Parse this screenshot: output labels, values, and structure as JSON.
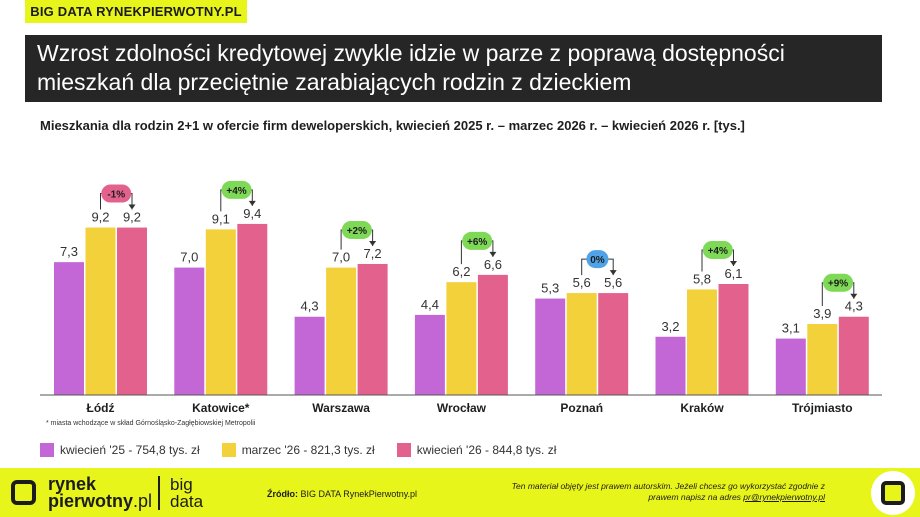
{
  "brand_tag": "BIG DATA RYNEKPIERWOTNY.PL",
  "title_line1": "Wzrost zdolności kredytowej zwykle idzie w parze z poprawą dostępności",
  "title_line2": "mieszkań dla przeciętnie zarabiających rodzin z dzieckiem",
  "footnote": "* miasta wchodzące w skład Górnośląsko-Zagłębiowskiej Metropolii",
  "footer": {
    "logo_rynek": "rynek",
    "logo_pierwotny": "pierwotny",
    "logo_pl": ".pl",
    "logo_big": "big",
    "logo_data": "data",
    "source_label": "Źródło:",
    "source_text": "BIG DATA RynekPierwotny.pl",
    "copyright_text": "Ten materiał objęty jest prawem autorskim. Jeżeli chcesz go wykorzystać zgodnie z prawem napisz na adres",
    "copyright_email": "pr@rynekpierwotny.pl"
  },
  "chart_data": {
    "type": "bar",
    "title": "Mieszkania dla rodzin 2+1 w ofercie firm deweloperskich, kwiecień 2025 r. – marzec 2026 r. – kwiecień 2026 r.  [tys.]",
    "categories": [
      "Łódź",
      "Katowice*",
      "Warszawa",
      "Wrocław",
      "Poznań",
      "Kraków",
      "Trójmiasto"
    ],
    "series": [
      {
        "name": "kwiecień '25 - 754,8 tys. zł",
        "color": "#c467d6",
        "values": [
          7.3,
          7.0,
          4.3,
          4.4,
          5.3,
          3.2,
          3.1
        ]
      },
      {
        "name": "marzec '26 - 821,3 tys. zł",
        "color": "#f2d13a",
        "values": [
          9.2,
          9.1,
          7.0,
          6.2,
          5.6,
          5.8,
          3.9
        ]
      },
      {
        "name": "kwiecień '26 - 844,8 tys. zł",
        "color": "#e3628d",
        "values": [
          9.2,
          9.4,
          7.2,
          6.6,
          5.6,
          6.1,
          4.3
        ]
      }
    ],
    "value_labels": [
      [
        "7,3",
        "9,2",
        "9,2"
      ],
      [
        "7,0",
        "9,1",
        "9,4"
      ],
      [
        "4,3",
        "7,0",
        "7,2"
      ],
      [
        "4,4",
        "6,2",
        "6,6"
      ],
      [
        "5,3",
        "5,6",
        "5,6"
      ],
      [
        "3,2",
        "5,8",
        "6,1"
      ],
      [
        "3,1",
        "3,9",
        "4,3"
      ]
    ],
    "changes": [
      {
        "label": "-1%",
        "color": "#e3628d"
      },
      {
        "label": "+4%",
        "color": "#7ed957"
      },
      {
        "label": "+2%",
        "color": "#7ed957"
      },
      {
        "label": "+6%",
        "color": "#7ed957"
      },
      {
        "label": "0%",
        "color": "#4fa3e6"
      },
      {
        "label": "+4%",
        "color": "#7ed957"
      },
      {
        "label": "+9%",
        "color": "#7ed957"
      }
    ],
    "ylim": [
      0,
      10.5
    ],
    "grid": false,
    "legend_position": "bottom-left"
  }
}
